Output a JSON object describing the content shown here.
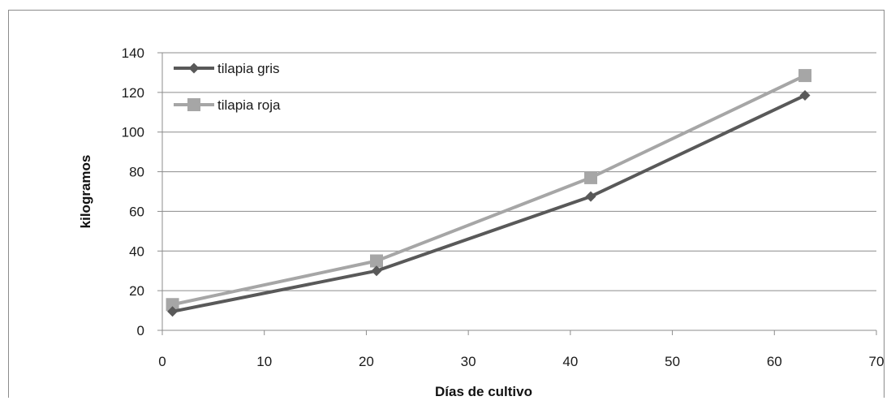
{
  "chart_data": {
    "type": "line",
    "xlabel": "Días de cultivo",
    "ylabel": "kilogramos",
    "xlim": [
      0,
      70
    ],
    "ylim": [
      0,
      140
    ],
    "xticks": [
      0,
      10,
      20,
      30,
      40,
      50,
      60,
      70
    ],
    "yticks": [
      0,
      20,
      40,
      60,
      80,
      100,
      120,
      140
    ],
    "grid": "horizontal",
    "legend_position": "top-left",
    "series": [
      {
        "name": "tilapia gris",
        "color": "#595959",
        "marker": "diamond",
        "x": [
          1,
          21,
          42,
          63
        ],
        "y": [
          9.5,
          30,
          67.5,
          118.5
        ]
      },
      {
        "name": "tilapia roja",
        "color": "#a6a6a6",
        "marker": "square",
        "x": [
          1,
          21,
          42,
          63
        ],
        "y": [
          13,
          35,
          77,
          128.5
        ]
      }
    ]
  }
}
